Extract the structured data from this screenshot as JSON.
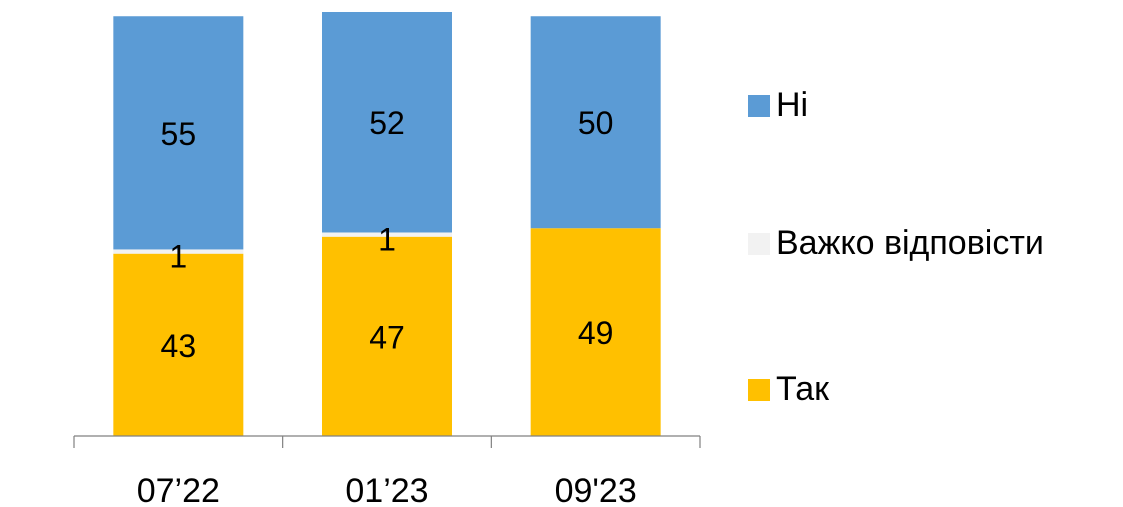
{
  "chart_data": {
    "type": "bar",
    "stacked": true,
    "percent_stacked": true,
    "categories": [
      "07’22",
      "01’23",
      "09'23"
    ],
    "series": [
      {
        "name": "Так",
        "values": [
          43,
          47,
          49
        ],
        "color": "#FFC000"
      },
      {
        "name": "Важко відповісти",
        "values": [
          1,
          1,
          0
        ],
        "color": "#F2F2F2"
      },
      {
        "name": "Ні",
        "values": [
          55,
          52,
          50
        ],
        "color": "#5B9BD5"
      }
    ],
    "data_labels": [
      [
        "43",
        "47",
        "49"
      ],
      [
        "1",
        "1",
        ""
      ],
      [
        "55",
        "52",
        "50"
      ]
    ],
    "legend": {
      "placement": "right",
      "items": [
        {
          "label": "Ні",
          "color": "#5B9BD5"
        },
        {
          "label": "Важко відповісти",
          "color": "#F2F2F2"
        },
        {
          "label": "Так",
          "color": "#FFC000"
        }
      ]
    },
    "title": "",
    "xlabel": "",
    "ylabel": "",
    "ylim": [
      0,
      100
    ],
    "grid": false
  }
}
